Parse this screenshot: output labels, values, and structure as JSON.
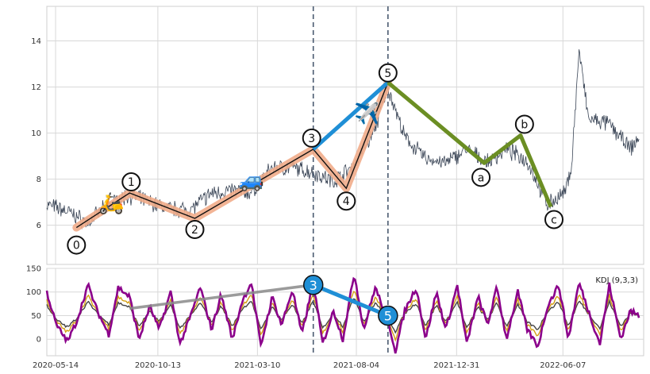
{
  "chart_data": {
    "type": "line",
    "x_ticks": [
      "2020-05-14",
      "2020-10-13",
      "2021-03-10",
      "2021-08-04",
      "2021-12-31",
      "2022-06-07"
    ],
    "x_range": [
      "2020-05-01",
      "2022-10-05"
    ],
    "price_panel": {
      "y_ticks": [
        6,
        8,
        10,
        12,
        14
      ],
      "ylim": [
        4.3,
        15.5
      ],
      "grid": true,
      "price_series_anchors": [
        {
          "x": "2020-05-01",
          "y": 6.9
        },
        {
          "x": "2020-06-01",
          "y": 6.6
        },
        {
          "x": "2020-07-01",
          "y": 6.1
        },
        {
          "x": "2020-08-01",
          "y": 6.9
        },
        {
          "x": "2020-09-01",
          "y": 7.3
        },
        {
          "x": "2020-10-01",
          "y": 7.0
        },
        {
          "x": "2020-11-01",
          "y": 6.7
        },
        {
          "x": "2020-12-01",
          "y": 6.7
        },
        {
          "x": "2021-01-01",
          "y": 7.4
        },
        {
          "x": "2021-02-01",
          "y": 7.5
        },
        {
          "x": "2021-03-01",
          "y": 7.4
        },
        {
          "x": "2021-04-01",
          "y": 8.5
        },
        {
          "x": "2021-05-01",
          "y": 8.5
        },
        {
          "x": "2021-06-01",
          "y": 8.3
        },
        {
          "x": "2021-07-01",
          "y": 7.9
        },
        {
          "x": "2021-08-01",
          "y": 8.6
        },
        {
          "x": "2021-09-01",
          "y": 10.2
        },
        {
          "x": "2021-09-20",
          "y": 12.0
        },
        {
          "x": "2021-10-15",
          "y": 9.8
        },
        {
          "x": "2021-11-15",
          "y": 8.9
        },
        {
          "x": "2021-12-15",
          "y": 8.7
        },
        {
          "x": "2022-01-15",
          "y": 9.3
        },
        {
          "x": "2022-02-15",
          "y": 8.7
        },
        {
          "x": "2022-03-15",
          "y": 9.3
        },
        {
          "x": "2022-04-15",
          "y": 8.8
        },
        {
          "x": "2022-05-15",
          "y": 6.9
        },
        {
          "x": "2022-06-10",
          "y": 7.4
        },
        {
          "x": "2022-06-20",
          "y": 8.6
        },
        {
          "x": "2022-07-01",
          "y": 13.6
        },
        {
          "x": "2022-07-15",
          "y": 10.6
        },
        {
          "x": "2022-08-15",
          "y": 10.4
        },
        {
          "x": "2022-09-15",
          "y": 9.3
        },
        {
          "x": "2022-09-28",
          "y": 9.8
        }
      ],
      "wave_points": [
        {
          "label": "0",
          "x": "2020-06-14",
          "y": 5.9
        },
        {
          "label": "1",
          "x": "2020-09-01",
          "y": 7.4
        },
        {
          "label": "2",
          "x": "2020-12-07",
          "y": 6.3
        },
        {
          "label": "3",
          "x": "2021-06-01",
          "y": 9.3
        },
        {
          "label": "4",
          "x": "2021-07-20",
          "y": 7.6
        },
        {
          "label": "5",
          "x": "2021-09-20",
          "y": 12.2
        }
      ],
      "corrective_points": [
        {
          "label": "5",
          "x": "2021-09-20",
          "y": 12.2
        },
        {
          "label": "a",
          "x": "2022-02-10",
          "y": 8.7
        },
        {
          "label": "b",
          "x": "2022-04-05",
          "y": 9.9
        },
        {
          "label": "c",
          "x": "2022-05-20",
          "y": 6.8
        }
      ],
      "extension_line": [
        {
          "x": "2021-06-01",
          "y": 9.3
        },
        {
          "x": "2021-09-20",
          "y": 12.2
        }
      ],
      "vertical_markers": [
        "2021-06-01",
        "2021-09-20"
      ],
      "icons": [
        {
          "name": "scooter-icon",
          "x": "2020-08-05",
          "y": 7.0,
          "glyph": "🛵"
        },
        {
          "name": "car-icon",
          "x": "2021-03-01",
          "y": 8.0,
          "glyph": "🚙"
        },
        {
          "name": "plane-icon",
          "x": "2021-08-20",
          "y": 10.9,
          "glyph": "✈️"
        }
      ]
    },
    "kdj_panel": {
      "label": "KDJ (9,3,3)",
      "y_ticks": [
        0,
        50,
        100,
        150
      ],
      "ylim": [
        -35,
        150
      ],
      "j_series_anchors": [
        {
          "x": "2020-05-01",
          "y": 100
        },
        {
          "x": "2020-05-15",
          "y": 30
        },
        {
          "x": "2020-06-01",
          "y": -5
        },
        {
          "x": "2020-06-15",
          "y": 40
        },
        {
          "x": "2020-07-01",
          "y": 115
        },
        {
          "x": "2020-07-15",
          "y": 60
        },
        {
          "x": "2020-08-01",
          "y": 10
        },
        {
          "x": "2020-08-15",
          "y": 110
        },
        {
          "x": "2020-09-01",
          "y": 90
        },
        {
          "x": "2020-09-15",
          "y": 0
        },
        {
          "x": "2020-10-01",
          "y": 70
        },
        {
          "x": "2020-10-15",
          "y": 20
        },
        {
          "x": "2020-11-01",
          "y": 100
        },
        {
          "x": "2020-11-15",
          "y": -10
        },
        {
          "x": "2020-12-01",
          "y": 50
        },
        {
          "x": "2020-12-15",
          "y": 110
        },
        {
          "x": "2021-01-01",
          "y": 20
        },
        {
          "x": "2021-01-15",
          "y": 95
        },
        {
          "x": "2021-02-01",
          "y": 0
        },
        {
          "x": "2021-02-15",
          "y": 80
        },
        {
          "x": "2021-03-01",
          "y": 120
        },
        {
          "x": "2021-03-15",
          "y": -15
        },
        {
          "x": "2021-04-01",
          "y": 90
        },
        {
          "x": "2021-04-15",
          "y": 30
        },
        {
          "x": "2021-05-01",
          "y": 105
        },
        {
          "x": "2021-05-15",
          "y": 10
        },
        {
          "x": "2021-06-01",
          "y": 120
        },
        {
          "x": "2021-06-15",
          "y": -10
        },
        {
          "x": "2021-07-01",
          "y": 60
        },
        {
          "x": "2021-07-15",
          "y": 0
        },
        {
          "x": "2021-08-01",
          "y": 140
        },
        {
          "x": "2021-08-15",
          "y": 20
        },
        {
          "x": "2021-09-01",
          "y": 110
        },
        {
          "x": "2021-09-20",
          "y": 40
        },
        {
          "x": "2021-10-01",
          "y": -25
        },
        {
          "x": "2021-10-15",
          "y": 60
        },
        {
          "x": "2021-11-01",
          "y": 110
        },
        {
          "x": "2021-11-15",
          "y": 0
        },
        {
          "x": "2021-12-01",
          "y": 100
        },
        {
          "x": "2021-12-15",
          "y": 20
        },
        {
          "x": "2022-01-01",
          "y": 115
        },
        {
          "x": "2022-01-15",
          "y": -10
        },
        {
          "x": "2022-02-01",
          "y": 90
        },
        {
          "x": "2022-02-15",
          "y": 30
        },
        {
          "x": "2022-03-01",
          "y": 110
        },
        {
          "x": "2022-03-15",
          "y": 0
        },
        {
          "x": "2022-04-01",
          "y": 100
        },
        {
          "x": "2022-04-15",
          "y": 20
        },
        {
          "x": "2022-05-01",
          "y": -15
        },
        {
          "x": "2022-05-15",
          "y": 70
        },
        {
          "x": "2022-06-01",
          "y": 115
        },
        {
          "x": "2022-06-15",
          "y": 0
        },
        {
          "x": "2022-07-01",
          "y": 120
        },
        {
          "x": "2022-07-15",
          "y": 60
        },
        {
          "x": "2022-08-01",
          "y": -10
        },
        {
          "x": "2022-08-15",
          "y": 115
        },
        {
          "x": "2022-09-01",
          "y": 0
        },
        {
          "x": "2022-09-15",
          "y": 60
        },
        {
          "x": "2022-09-28",
          "y": 50
        }
      ],
      "divergence_line": [
        {
          "x": "2020-09-01",
          "y": 65
        },
        {
          "x": "2021-06-01",
          "y": 115
        }
      ],
      "divergence_arrow": [
        {
          "x": "2021-06-01",
          "y": 115
        },
        {
          "x": "2021-09-20",
          "y": 50
        }
      ],
      "markers": [
        {
          "label": "3",
          "x": "2021-06-01",
          "y": 115
        },
        {
          "label": "5",
          "x": "2021-09-20",
          "y": 50
        }
      ]
    },
    "colors": {
      "price": "#3a4556",
      "impulse": "#111111",
      "impulse_halo": "#f1ac8a",
      "corrective": "#6b8e23",
      "extension": "#1f8fd6",
      "vline": "#4a5a70",
      "j_line": "#8b008b",
      "k_line": "#d4a015",
      "d_line": "#444444",
      "trend": "#8a8a8a",
      "marker_fill": "#1f8fd6",
      "grid": "#d8d8d8"
    }
  }
}
